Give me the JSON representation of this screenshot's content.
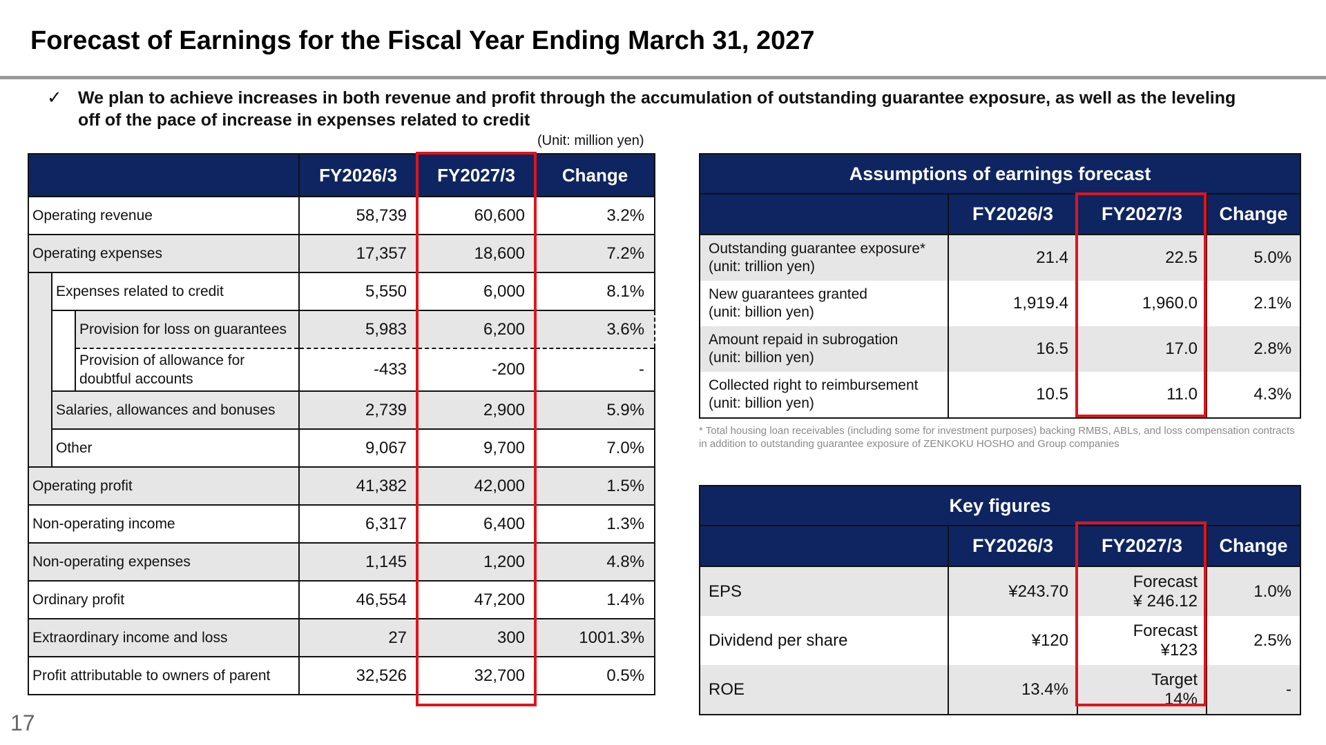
{
  "title": "Forecast of Earnings for the Fiscal Year Ending March 31, 2027",
  "lead": {
    "icon": "check-icon",
    "text": "We plan to achieve increases in both revenue and profit through the accumulation of outstanding guarantee exposure, as well as the leveling off of the pace of increase in expenses related to credit"
  },
  "unit": "(Unit: million yen)",
  "main_table": {
    "headers": [
      "FY2026/3",
      "FY2027/3",
      "Change"
    ],
    "rows": [
      {
        "label": "Operating revenue",
        "fy2026": "58,739",
        "fy2027": "60,600",
        "change": "3.2%"
      },
      {
        "label": "Operating expenses",
        "fy2026": "17,357",
        "fy2027": "18,600",
        "change": "7.2%"
      },
      {
        "label": "Expenses related to credit",
        "fy2026": "5,550",
        "fy2027": "6,000",
        "change": "8.1%"
      },
      {
        "label": "Provision for loss on guarantees",
        "fy2026": "5,983",
        "fy2027": "6,200",
        "change": "3.6%"
      },
      {
        "label": "Provision of allowance for doubtful accounts",
        "fy2026": "-433",
        "fy2027": "-200",
        "change": "-"
      },
      {
        "label": "Salaries, allowances and bonuses",
        "fy2026": "2,739",
        "fy2027": "2,900",
        "change": "5.9%"
      },
      {
        "label": "Other",
        "fy2026": "9,067",
        "fy2027": "9,700",
        "change": "7.0%"
      },
      {
        "label": "Operating profit",
        "fy2026": "41,382",
        "fy2027": "42,000",
        "change": "1.5%"
      },
      {
        "label": "Non-operating income",
        "fy2026": "6,317",
        "fy2027": "6,400",
        "change": "1.3%"
      },
      {
        "label": "Non-operating expenses",
        "fy2026": "1,145",
        "fy2027": "1,200",
        "change": "4.8%"
      },
      {
        "label": "Ordinary profit",
        "fy2026": "46,554",
        "fy2027": "47,200",
        "change": "1.4%"
      },
      {
        "label": "Extraordinary income and loss",
        "fy2026": "27",
        "fy2027": "300",
        "change": "1001.3%"
      },
      {
        "label": "Profit attributable to owners of parent",
        "fy2026": "32,526",
        "fy2027": "32,700",
        "change": "0.5%"
      }
    ]
  },
  "assumptions": {
    "title": "Assumptions of earnings forecast",
    "headers": [
      "FY2026/3",
      "FY2027/3",
      "Change"
    ],
    "rows": [
      {
        "label": "Outstanding guarantee exposure*",
        "sub": "(unit: trillion yen)",
        "fy2026": "21.4",
        "fy2027": "22.5",
        "change": "5.0%"
      },
      {
        "label": "New guarantees granted",
        "sub": "(unit: billion yen)",
        "fy2026": "1,919.4",
        "fy2027": "1,960.0",
        "change": "2.1%"
      },
      {
        "label": "Amount repaid in subrogation",
        "sub": "(unit: billion yen)",
        "fy2026": "16.5",
        "fy2027": "17.0",
        "change": "2.8%"
      },
      {
        "label": "Collected right to reimbursement",
        "sub": "(unit: billion yen)",
        "fy2026": "10.5",
        "fy2027": "11.0",
        "change": "4.3%"
      }
    ],
    "note": "* Total housing loan receivables (including some for investment purposes) backing RMBS, ABLs, and loss compensation contracts in addition to outstanding guarantee exposure of ZENKOKU HOSHO and Group companies"
  },
  "key_figures": {
    "title": "Key figures",
    "headers": [
      "FY2026/3",
      "FY2027/3",
      "Change"
    ],
    "rows": [
      {
        "label": "EPS",
        "fy2026": "¥243.70",
        "fy2027_tag": "Forecast",
        "fy2027": "¥ 246.12",
        "change": "1.0%"
      },
      {
        "label": "Dividend per share",
        "fy2026": "¥120",
        "fy2027_tag": "Forecast",
        "fy2027": "¥123",
        "change": "2.5%"
      },
      {
        "label": "ROE",
        "fy2026": "13.4%",
        "fy2027_tag": "Target",
        "fy2027": "14%",
        "change": "-"
      }
    ]
  },
  "highlight_color": "#e0141b",
  "header_color": "#0f2561",
  "page_number": "17"
}
